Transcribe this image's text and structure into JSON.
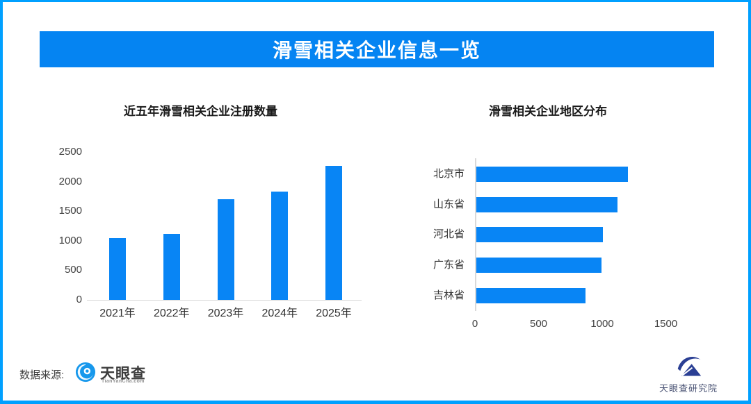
{
  "header": {
    "title": "滑雪相关企业信息一览"
  },
  "colors": {
    "border": "#00A0FF",
    "banner": "#0584F2",
    "bar": "#0885F5",
    "axis_line": "#d9d9d9"
  },
  "chart_data": [
    {
      "type": "bar",
      "orientation": "vertical",
      "title": "近五年滑雪相关企业注册数量",
      "categories": [
        "2021年",
        "2022年",
        "2023年",
        "2024年",
        "2025年"
      ],
      "values": [
        1040,
        1110,
        1700,
        1830,
        2260
      ],
      "xlabel": "",
      "ylabel": "",
      "ylim": [
        0,
        2500
      ],
      "yticks": [
        0,
        500,
        1000,
        1500,
        2000,
        2500
      ],
      "grid": false,
      "legend": false,
      "bar_color": "#0885F5"
    },
    {
      "type": "bar",
      "orientation": "horizontal",
      "title": "滑雪相关企业地区分布",
      "categories": [
        "北京市",
        "山东省",
        "河北省",
        "广东省",
        "吉林省"
      ],
      "values": [
        1190,
        1110,
        995,
        985,
        860
      ],
      "xlabel": "",
      "ylabel": "",
      "xlim": [
        0,
        2000
      ],
      "xticks": [
        0,
        500,
        1000,
        1500
      ],
      "grid": false,
      "legend": false,
      "bar_color": "#0885F5"
    }
  ],
  "footer": {
    "source_label": "数据来源:",
    "source_name": "天眼查",
    "source_domain": "TianYanCha.com",
    "institute_name": "天眼查研究院"
  }
}
